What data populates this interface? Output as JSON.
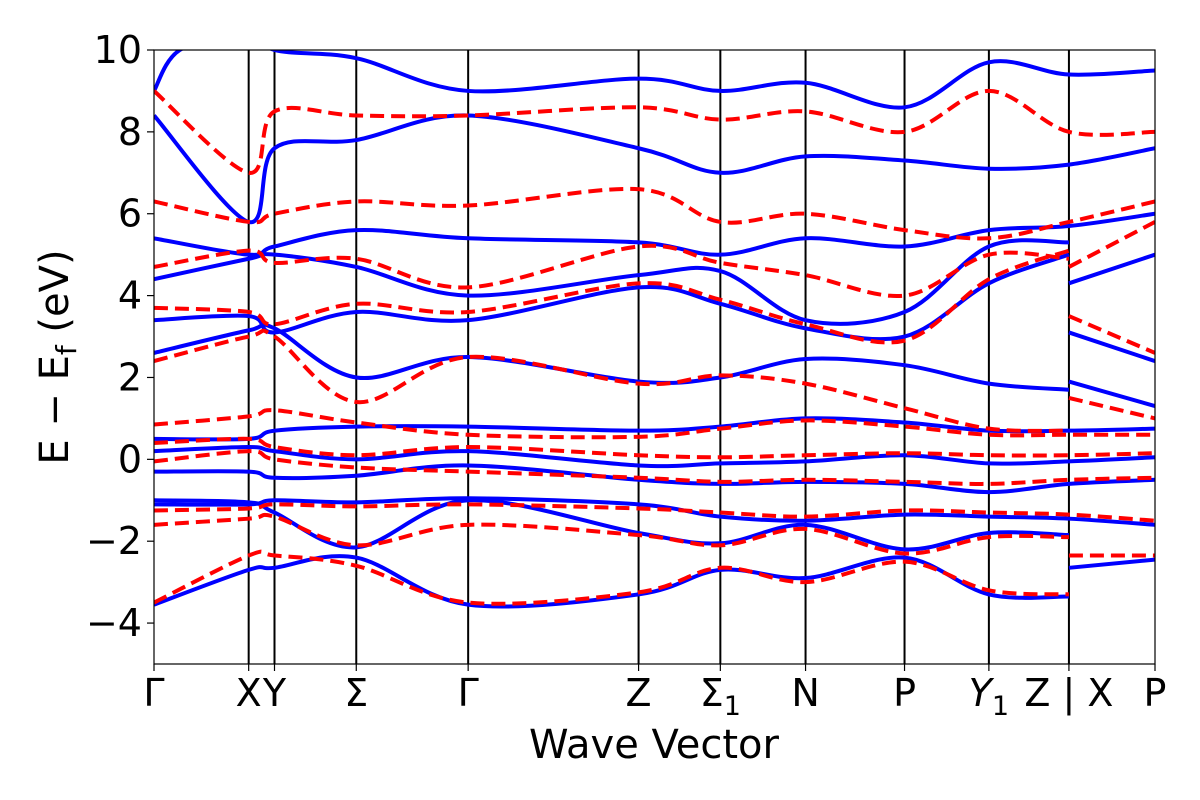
{
  "chart_data": {
    "type": "line",
    "title": "",
    "xlabel": "Wave Vector",
    "ylabel": "E − E_f (eV)",
    "ylabel_parts": {
      "prefix": "E − E",
      "subscript": "f",
      "suffix": " (eV)"
    },
    "ylim": [
      -5,
      10
    ],
    "yticks": [
      -4,
      -2,
      0,
      2,
      4,
      6,
      8,
      10
    ],
    "ytick_labels": [
      "−4",
      "−2",
      "0",
      "2",
      "4",
      "6",
      "8",
      "10"
    ],
    "grid": false,
    "legend": "none",
    "colors": {
      "solid": "#0000ff",
      "dashed": "#ff0000"
    },
    "kpoints": [
      {
        "label": "Γ",
        "sub": "",
        "italic": false,
        "x": 0.0
      },
      {
        "label": "X",
        "sub": "",
        "italic": false,
        "x": 0.11
      },
      {
        "label": "Y",
        "sub": "",
        "italic": false,
        "x": 0.14
      },
      {
        "label": "Σ",
        "sub": "",
        "italic": false,
        "x": 0.235
      },
      {
        "label": "Γ",
        "sub": "",
        "italic": false,
        "x": 0.365
      },
      {
        "label": "Z",
        "sub": "",
        "italic": false,
        "x": 0.563
      },
      {
        "label": "Σ",
        "sub": "1",
        "italic": false,
        "x": 0.658
      },
      {
        "label": "N",
        "sub": "",
        "italic": false,
        "x": 0.757
      },
      {
        "label": "P",
        "sub": "",
        "italic": false,
        "x": 0.872
      },
      {
        "label": "Y",
        "sub": "1",
        "italic": true,
        "x": 0.97
      },
      {
        "label": "Z | X",
        "sub": "",
        "italic": false,
        "x": 1.063
      },
      {
        "label": "P",
        "sub": "",
        "italic": false,
        "x": 1.163
      }
    ],
    "series": [
      {
        "style": "solid",
        "x": [
          0,
          0.11,
          0.14,
          0.235,
          0.365,
          0.563,
          0.658,
          0.757,
          0.872,
          0.97,
          1.063
        ],
        "values": [
          -3.55,
          -2.7,
          -2.65,
          -2.4,
          -3.55,
          -3.3,
          -2.7,
          -2.9,
          -2.4,
          -3.3,
          -3.35
        ]
      },
      {
        "style": "solid",
        "x": [
          1.063,
          1.163
        ],
        "values": [
          -2.65,
          -2.45
        ]
      },
      {
        "style": "dashed",
        "x": [
          0,
          0.11,
          0.14,
          0.235,
          0.365,
          0.563,
          0.658,
          0.757,
          0.872,
          0.97,
          1.063
        ],
        "values": [
          -3.5,
          -2.35,
          -2.35,
          -2.6,
          -3.5,
          -3.25,
          -2.65,
          -3.0,
          -2.5,
          -3.2,
          -3.3
        ]
      },
      {
        "style": "dashed",
        "x": [
          1.063,
          1.163
        ],
        "values": [
          -2.35,
          -2.35
        ]
      },
      {
        "style": "solid",
        "x": [
          0,
          0.11,
          0.14,
          0.235,
          0.365,
          0.563,
          0.658,
          0.757,
          0.872,
          0.97,
          1.063
        ],
        "values": [
          -1.0,
          -1.05,
          -1.3,
          -2.15,
          -1.0,
          -1.8,
          -2.05,
          -1.6,
          -2.2,
          -1.8,
          -1.85
        ]
      },
      {
        "style": "dashed",
        "x": [
          0,
          0.11,
          0.14,
          0.235,
          0.365,
          0.563,
          0.658,
          0.757,
          0.872,
          0.97,
          1.063
        ],
        "values": [
          -1.6,
          -1.45,
          -1.4,
          -2.1,
          -1.6,
          -1.85,
          -2.1,
          -1.7,
          -2.3,
          -1.9,
          -1.9
        ]
      },
      {
        "style": "solid",
        "x": [
          0,
          0.11,
          0.14,
          0.235,
          0.365,
          0.563,
          0.658,
          0.757,
          0.872,
          0.97,
          1.063,
          1.163
        ],
        "values": [
          -1.1,
          -1.1,
          -1.0,
          -1.05,
          -0.95,
          -1.1,
          -1.4,
          -1.5,
          -1.35,
          -1.4,
          -1.45,
          -1.6
        ]
      },
      {
        "style": "dashed",
        "x": [
          0,
          0.11,
          0.14,
          0.235,
          0.365,
          0.563,
          0.658,
          0.757,
          0.872,
          0.97,
          1.063,
          1.163
        ],
        "values": [
          -1.25,
          -1.2,
          -1.1,
          -1.15,
          -1.1,
          -1.2,
          -1.3,
          -1.4,
          -1.25,
          -1.3,
          -1.35,
          -1.5
        ]
      },
      {
        "style": "solid",
        "x": [
          0,
          0.11,
          0.14,
          0.235,
          0.365,
          0.563,
          0.658,
          0.757,
          0.872,
          0.97,
          1.063,
          1.163
        ],
        "values": [
          -0.3,
          -0.3,
          -0.45,
          -0.4,
          -0.15,
          -0.5,
          -0.6,
          -0.55,
          -0.6,
          -0.8,
          -0.6,
          -0.5
        ]
      },
      {
        "style": "dashed",
        "x": [
          0,
          0.11,
          0.14,
          0.235,
          0.365,
          0.563,
          0.658,
          0.757,
          0.872,
          0.97,
          1.063,
          1.163
        ],
        "values": [
          -0.05,
          0.2,
          0.0,
          -0.2,
          -0.3,
          -0.45,
          -0.55,
          -0.5,
          -0.55,
          -0.6,
          -0.5,
          -0.45
        ]
      },
      {
        "style": "solid",
        "x": [
          0,
          0.11,
          0.14,
          0.235,
          0.365,
          0.563,
          0.658,
          0.757,
          0.872,
          0.97,
          1.063,
          1.163
        ],
        "values": [
          0.2,
          0.3,
          0.2,
          0.0,
          0.2,
          -0.15,
          -0.1,
          -0.05,
          0.1,
          -0.1,
          -0.05,
          0.05
        ]
      },
      {
        "style": "dashed",
        "x": [
          0,
          0.11,
          0.14,
          0.235,
          0.365,
          0.563,
          0.658,
          0.757,
          0.872,
          0.97,
          1.063,
          1.163
        ],
        "values": [
          0.4,
          0.5,
          0.3,
          0.1,
          0.3,
          0.1,
          0.05,
          0.1,
          0.15,
          0.1,
          0.1,
          0.15
        ]
      },
      {
        "style": "solid",
        "x": [
          0,
          0.11,
          0.14,
          0.235,
          0.365,
          0.563,
          0.658,
          0.757,
          0.872,
          0.97,
          1.063,
          1.163
        ],
        "values": [
          0.5,
          0.5,
          0.7,
          0.8,
          0.8,
          0.7,
          0.8,
          1.0,
          0.9,
          0.7,
          0.7,
          0.75
        ]
      },
      {
        "style": "dashed",
        "x": [
          0,
          0.11,
          0.14,
          0.235,
          0.365,
          0.563,
          0.658,
          0.757,
          0.872,
          0.97,
          1.063,
          1.163
        ],
        "values": [
          0.85,
          1.05,
          1.2,
          0.9,
          0.6,
          0.55,
          0.75,
          0.95,
          0.8,
          0.6,
          0.6,
          0.6
        ]
      },
      {
        "style": "solid",
        "x": [
          0,
          0.11,
          0.14,
          0.235,
          0.365,
          0.563,
          0.658,
          0.757,
          0.872,
          0.97,
          1.063
        ],
        "values": [
          2.6,
          3.15,
          3.2,
          2.0,
          2.5,
          1.9,
          2.0,
          2.45,
          2.3,
          1.85,
          1.7
        ]
      },
      {
        "style": "solid",
        "x": [
          1.063,
          1.163
        ],
        "values": [
          1.9,
          1.3
        ]
      },
      {
        "style": "dashed",
        "x": [
          0,
          0.11,
          0.14,
          0.235,
          0.365,
          0.563,
          0.658,
          0.757,
          0.872,
          0.97,
          1.063
        ],
        "values": [
          2.4,
          3.0,
          3.0,
          1.4,
          2.5,
          1.85,
          2.05,
          1.85,
          1.25,
          0.75,
          0.7
        ]
      },
      {
        "style": "dashed",
        "x": [
          1.063,
          1.163
        ],
        "values": [
          1.5,
          1.0
        ]
      },
      {
        "style": "solid",
        "x": [
          0,
          0.11,
          0.14,
          0.235,
          0.365,
          0.563,
          0.658,
          0.757,
          0.872,
          0.97,
          1.063
        ],
        "values": [
          3.4,
          3.5,
          3.1,
          3.6,
          3.4,
          4.2,
          3.8,
          3.2,
          3.0,
          4.3,
          5.0
        ]
      },
      {
        "style": "solid",
        "x": [
          1.063,
          1.163
        ],
        "values": [
          3.1,
          2.4
        ]
      },
      {
        "style": "dashed",
        "x": [
          0,
          0.11,
          0.14,
          0.235,
          0.365,
          0.563,
          0.658,
          0.757,
          0.872,
          0.97,
          1.063
        ],
        "values": [
          3.7,
          3.6,
          3.3,
          3.8,
          3.6,
          4.3,
          3.9,
          3.3,
          2.9,
          4.4,
          5.1
        ]
      },
      {
        "style": "dashed",
        "x": [
          1.063,
          1.163
        ],
        "values": [
          3.5,
          2.6
        ]
      },
      {
        "style": "solid",
        "x": [
          0,
          0.11,
          0.14,
          0.235,
          0.365,
          0.563,
          0.658,
          0.757,
          0.872,
          0.97,
          1.063
        ],
        "values": [
          4.4,
          4.9,
          5.0,
          4.7,
          4.0,
          4.5,
          4.6,
          3.4,
          3.6,
          5.2,
          5.3
        ]
      },
      {
        "style": "solid",
        "x": [
          1.063,
          1.163
        ],
        "values": [
          4.3,
          5.0
        ]
      },
      {
        "style": "dashed",
        "x": [
          0,
          0.11,
          0.14,
          0.235,
          0.365,
          0.563,
          0.658,
          0.757,
          0.872,
          0.97,
          1.063
        ],
        "values": [
          4.7,
          5.1,
          4.8,
          4.9,
          4.2,
          5.2,
          4.8,
          4.5,
          4.0,
          5.0,
          4.9
        ]
      },
      {
        "style": "dashed",
        "x": [
          1.063,
          1.163
        ],
        "values": [
          4.7,
          5.8
        ]
      },
      {
        "style": "solid",
        "x": [
          0,
          0.11,
          0.14,
          0.235,
          0.365,
          0.563,
          0.658,
          0.757,
          0.872,
          0.97,
          1.063,
          1.163
        ],
        "values": [
          5.4,
          5.0,
          5.2,
          5.6,
          5.4,
          5.3,
          5.0,
          5.4,
          5.2,
          5.6,
          5.7,
          6.0
        ]
      },
      {
        "style": "dashed",
        "x": [
          0,
          0.11,
          0.14,
          0.235,
          0.365,
          0.563,
          0.658,
          0.757,
          0.872,
          0.97,
          1.063,
          1.163
        ],
        "values": [
          6.3,
          5.8,
          6.0,
          6.3,
          6.2,
          6.6,
          5.8,
          6.0,
          5.6,
          5.4,
          5.8,
          6.3
        ]
      },
      {
        "style": "solid",
        "x": [
          0,
          0.11,
          0.14,
          0.235,
          0.365,
          0.563,
          0.658,
          0.757,
          0.872,
          0.97,
          1.063,
          1.163
        ],
        "values": [
          8.4,
          5.8,
          7.6,
          7.8,
          8.4,
          7.6,
          7.0,
          7.4,
          7.3,
          7.1,
          7.2,
          7.6
        ]
      },
      {
        "style": "dashed",
        "x": [
          0,
          0.11,
          0.14,
          0.235,
          0.365,
          0.563,
          0.658,
          0.757,
          0.872,
          0.97,
          1.063,
          1.163
        ],
        "values": [
          9.0,
          7.0,
          8.5,
          8.4,
          8.4,
          8.6,
          8.3,
          8.5,
          8.0,
          9.0,
          8.0,
          8.0
        ]
      },
      {
        "style": "solid",
        "x": [
          0,
          0.03,
          0.11,
          0.14,
          0.235,
          0.365,
          0.563,
          0.658,
          0.757,
          0.872,
          0.97,
          1.063,
          1.163
        ],
        "values": [
          9.0,
          10.0,
          10.5,
          10.0,
          9.8,
          9.0,
          9.3,
          9.0,
          9.2,
          8.6,
          9.7,
          9.4,
          9.5
        ]
      }
    ]
  }
}
